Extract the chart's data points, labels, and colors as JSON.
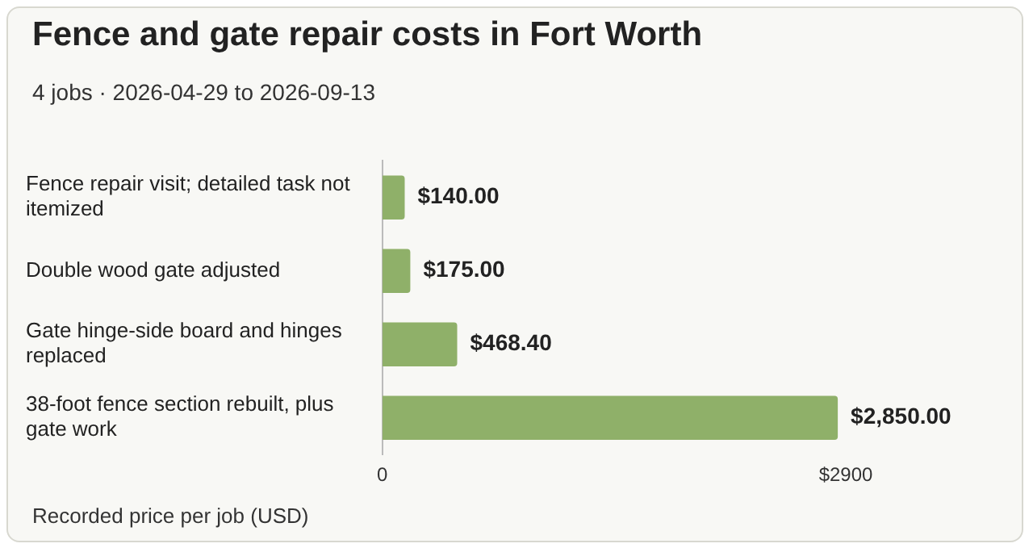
{
  "chart_data": {
    "type": "bar",
    "orientation": "horizontal",
    "title": "Fence and gate repair costs in Fort Worth",
    "subtitle": "4 jobs · 2026-04-29 to 2026-09-13",
    "categories": [
      "Fence repair visit; detailed task not itemized",
      "Double wood gate adjusted",
      "Gate hinge-side board and hinges replaced",
      "38-foot fence section rebuilt, plus gate work"
    ],
    "values": [
      140,
      175,
      468.4,
      2850
    ],
    "color": "#8fb069",
    "value_labels": [
      "$140.00",
      "$175.00",
      "$468.40",
      "$2,850.00"
    ],
    "xlim": [
      0,
      2900
    ],
    "xticks": [
      0,
      {
        "value": 2900,
        "label": "$2900"
      }
    ],
    "grid": false,
    "legend": false,
    "annotations": [
      "Recorded price per job (USD)"
    ]
  }
}
